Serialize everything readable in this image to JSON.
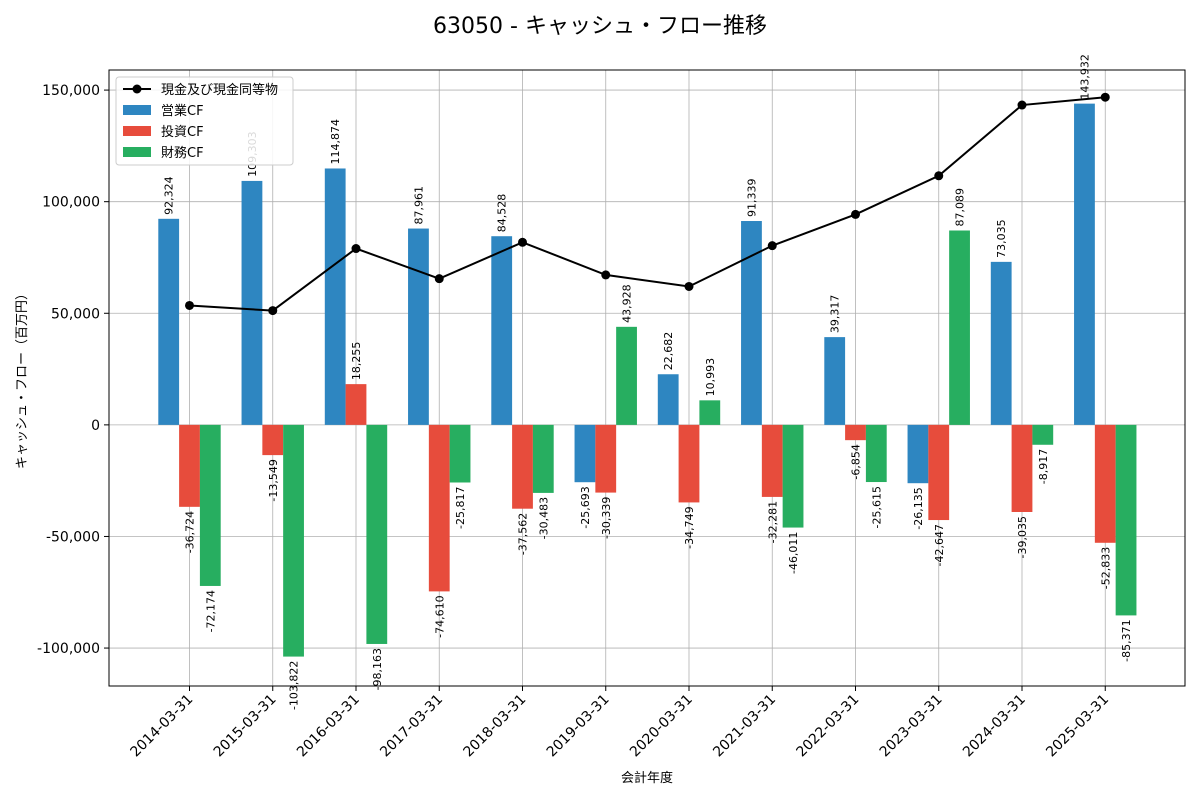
{
  "chart_data": {
    "type": "bar",
    "title": "63050 - キャッシュ・フロー推移",
    "xlabel": "会計年度",
    "ylabel": "キャッシュ・フロー（百万円）",
    "ylim": [
      -117000,
      159000
    ],
    "yticks": [
      -100000,
      -50000,
      0,
      50000,
      100000,
      150000
    ],
    "ytick_labels": [
      "-100,000",
      "-50,000",
      "0",
      "50,000",
      "100,000",
      "150,000"
    ],
    "grid": true,
    "legend_position": "top-left",
    "categories": [
      "2014-03-31",
      "2015-03-31",
      "2016-03-31",
      "2017-03-31",
      "2018-03-31",
      "2019-03-31",
      "2020-03-31",
      "2021-03-31",
      "2022-03-31",
      "2023-03-31",
      "2024-03-31",
      "2025-03-31"
    ],
    "series": [
      {
        "name": "営業CF",
        "kind": "bar",
        "color": "#2e86c1",
        "values": [
          92324,
          109303,
          114874,
          87961,
          84528,
          -25693,
          22682,
          91339,
          39317,
          -26135,
          73035,
          143932
        ],
        "labels": [
          "92,324",
          "109,303",
          "114,874",
          "87,961",
          "84,528",
          "-25,693",
          "22,682",
          "91,339",
          "39,317",
          "-26,135",
          "73,035",
          "143,932"
        ]
      },
      {
        "name": "投資CF",
        "kind": "bar",
        "color": "#e74c3c",
        "values": [
          -36724,
          -13549,
          18255,
          -74610,
          -37562,
          -30339,
          -34749,
          -32281,
          -6854,
          -42647,
          -39035,
          -52833
        ],
        "labels": [
          "-36,724",
          "-13,549",
          "18,255",
          "-74,610",
          "-37,562",
          "-30,339",
          "-34,749",
          "-32,281",
          "-6,854",
          "-42,647",
          "-39,035",
          "-52,833"
        ]
      },
      {
        "name": "財務CF",
        "kind": "bar",
        "color": "#27ae60",
        "values": [
          -72174,
          -103822,
          -98163,
          -25817,
          -30483,
          43928,
          10993,
          -46011,
          -25615,
          87089,
          -8917,
          -85371
        ],
        "labels": [
          "-72,174",
          "-103,822",
          "-98,163",
          "-25,817",
          "-30,483",
          "43,928",
          "10,993",
          "-46,011",
          "-25,615",
          "87,089",
          "-8,917",
          "-85,371"
        ]
      },
      {
        "name": "現金及び現金同等物",
        "kind": "line",
        "color": "#000000",
        "values": [
          53500,
          51200,
          79000,
          65500,
          81800,
          67200,
          62000,
          80300,
          94300,
          111600,
          143300,
          146800
        ]
      }
    ]
  }
}
